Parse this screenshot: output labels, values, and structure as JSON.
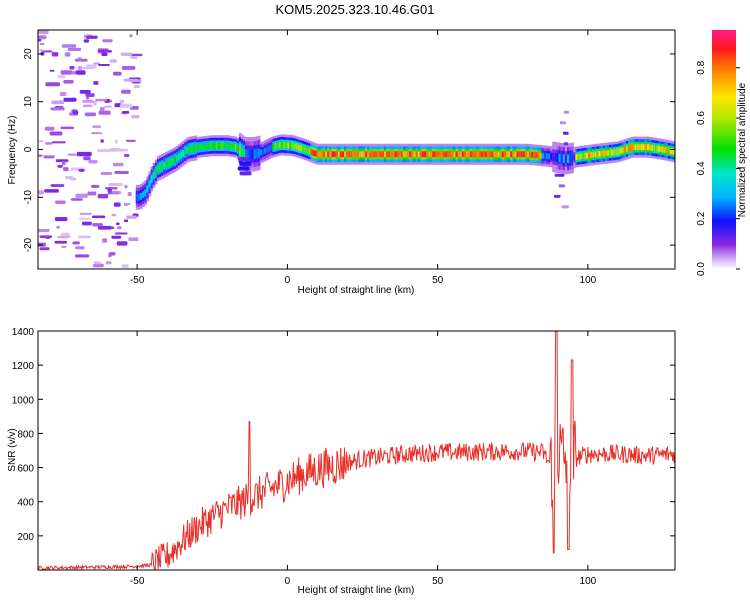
{
  "title": "KOM5.2025.323.10.46.G01",
  "chart_data": [
    {
      "type": "heatmap",
      "xlabel": "Height of straight line (km)",
      "ylabel": "Frequency (Hz)",
      "xlim": [
        -83,
        129
      ],
      "ylim": [
        -25,
        25
      ],
      "xticks": [
        -50,
        0,
        50,
        100
      ],
      "yticks": [
        -20,
        -10,
        0,
        10,
        20
      ],
      "colorbar": {
        "label": "Normalized spectral amplitude",
        "range": [
          0,
          0.95
        ],
        "ticks": [
          0.0,
          0.2,
          0.4,
          0.6,
          0.8
        ]
      },
      "ridge": [
        [
          -49,
          -10
        ],
        [
          -47,
          -9
        ],
        [
          -45,
          -6
        ],
        [
          -43,
          -4
        ],
        [
          -40,
          -3
        ],
        [
          -37,
          -2
        ],
        [
          -33,
          0
        ],
        [
          -29,
          0.5
        ],
        [
          -25,
          0.8
        ],
        [
          -20,
          0.8
        ],
        [
          -17,
          0.5
        ],
        [
          -14,
          -1
        ],
        [
          -11,
          -1
        ],
        [
          -8,
          -0.5
        ],
        [
          -5,
          0.5
        ],
        [
          -2,
          1
        ],
        [
          2,
          0.8
        ],
        [
          6,
          0
        ],
        [
          10,
          -1
        ],
        [
          20,
          -1
        ],
        [
          40,
          -1
        ],
        [
          60,
          -1
        ],
        [
          80,
          -1
        ],
        [
          88,
          -1.5
        ],
        [
          93,
          -2
        ],
        [
          97,
          -1.5
        ],
        [
          103,
          -1
        ],
        [
          110,
          -0.5
        ],
        [
          115,
          0.5
        ],
        [
          120,
          0.5
        ],
        [
          125,
          0
        ],
        [
          129,
          -0.5
        ]
      ]
    },
    {
      "type": "line",
      "xlabel": "Height of straight line (km)",
      "ylabel": "SNR (v/v)",
      "xlim": [
        -83,
        129
      ],
      "ylim": [
        0,
        1400
      ],
      "xticks": [
        -50,
        0,
        50,
        100
      ],
      "yticks": [
        200,
        400,
        600,
        800,
        1000,
        1200,
        1400
      ],
      "color": "#e8302a",
      "envelope": [
        [
          -83,
          12
        ],
        [
          -60,
          18
        ],
        [
          -50,
          22
        ],
        [
          -45,
          30
        ],
        [
          -40,
          80
        ],
        [
          -35,
          170
        ],
        [
          -30,
          250
        ],
        [
          -25,
          310
        ],
        [
          -20,
          360
        ],
        [
          -15,
          400
        ],
        [
          -10,
          440
        ],
        [
          -5,
          480
        ],
        [
          0,
          520
        ],
        [
          5,
          560
        ],
        [
          10,
          590
        ],
        [
          15,
          610
        ],
        [
          20,
          630
        ],
        [
          25,
          650
        ],
        [
          30,
          660
        ],
        [
          35,
          670
        ],
        [
          40,
          680
        ],
        [
          50,
          690
        ],
        [
          60,
          690
        ],
        [
          70,
          695
        ],
        [
          80,
          695
        ],
        [
          85,
          690
        ],
        [
          88,
          600
        ],
        [
          90,
          700
        ],
        [
          92,
          650
        ],
        [
          95,
          650
        ],
        [
          100,
          680
        ],
        [
          110,
          680
        ],
        [
          120,
          670
        ],
        [
          129,
          680
        ]
      ],
      "spikes": [
        {
          "x": -12.6,
          "y": 870
        },
        {
          "x": 89.5,
          "y": 1400
        },
        {
          "x": 88.6,
          "y": 100
        },
        {
          "x": 94.8,
          "y": 1230
        },
        {
          "x": 93.5,
          "y": 120
        }
      ]
    }
  ]
}
